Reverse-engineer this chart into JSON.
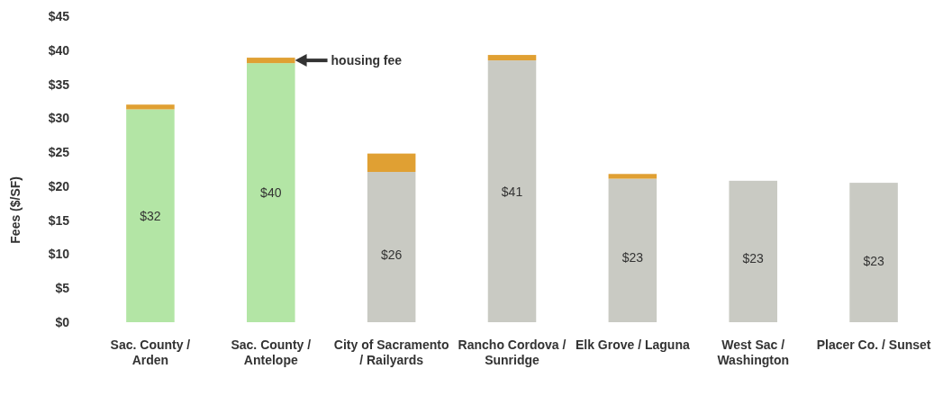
{
  "chart_data": {
    "type": "bar",
    "stacked": true,
    "ylabel": "Fees ($/SF)",
    "categories": [
      "Sac. County / Arden",
      "Sac. County / Antelope",
      "City of Sacramento / Railyards",
      "Rancho Cordova / Sunridge",
      "Elk Grove / Laguna",
      "West Sac / Washington",
      "Placer Co. / Sunset"
    ],
    "series": [
      {
        "colors": [
          "#b3e5a5",
          "#b3e5a5",
          "#c9cac3",
          "#c9cac3",
          "#c9cac3",
          "#c9cac3",
          "#c9cac3"
        ],
        "values": [
          31.3,
          38.1,
          22.1,
          38.5,
          21.1,
          20.8,
          20.5
        ]
      },
      {
        "color": "#e0a033",
        "values": [
          0.7,
          0.8,
          2.7,
          0.8,
          0.7,
          null,
          null
        ]
      }
    ],
    "ylim": [
      0,
      45
    ],
    "yticks": [
      {
        "value": 0,
        "label": "$0"
      },
      {
        "value": 5,
        "label": "$5"
      },
      {
        "value": 10,
        "label": "$10"
      },
      {
        "value": 15,
        "label": "$15"
      },
      {
        "value": 20,
        "label": "$20"
      },
      {
        "value": 25,
        "label": "$25"
      },
      {
        "value": 30,
        "label": "$30"
      },
      {
        "value": 35,
        "label": "$35"
      },
      {
        "value": 40,
        "label": "$40"
      },
      {
        "value": 45,
        "label": "$45"
      }
    ],
    "annotations": [
      "housing fee",
      "$32",
      "$40",
      "$26",
      "$41",
      "$23",
      "$23",
      "$23"
    ]
  }
}
